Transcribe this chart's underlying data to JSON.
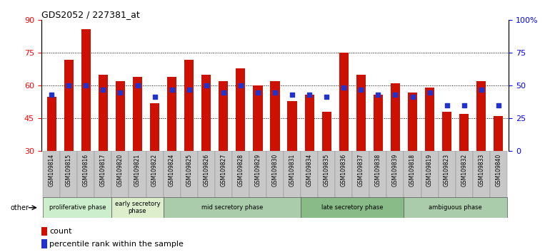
{
  "title": "GDS2052 / 227381_at",
  "samples": [
    "GSM109814",
    "GSM109815",
    "GSM109816",
    "GSM109817",
    "GSM109820",
    "GSM109821",
    "GSM109822",
    "GSM109824",
    "GSM109825",
    "GSM109826",
    "GSM109827",
    "GSM109828",
    "GSM109829",
    "GSM109830",
    "GSM109831",
    "GSM109834",
    "GSM109835",
    "GSM109836",
    "GSM109837",
    "GSM109838",
    "GSM109839",
    "GSM109818",
    "GSM109819",
    "GSM109823",
    "GSM109832",
    "GSM109833",
    "GSM109840"
  ],
  "count_values": [
    55,
    72,
    86,
    65,
    62,
    64,
    52,
    64,
    72,
    65,
    62,
    68,
    60,
    62,
    53,
    56,
    48,
    75,
    65,
    56,
    61,
    57,
    59,
    48,
    47,
    62,
    46
  ],
  "percentile_left_values": [
    56,
    60,
    60,
    58,
    57,
    60,
    55,
    58,
    58,
    60,
    57,
    60,
    57,
    57,
    56,
    56,
    55,
    59,
    58,
    56,
    56,
    55,
    57,
    51,
    51,
    58,
    51
  ],
  "ylim_left": [
    30,
    90
  ],
  "ylim_right": [
    0,
    100
  ],
  "yticks_left": [
    30,
    45,
    60,
    75,
    90
  ],
  "yticks_right": [
    0,
    25,
    50,
    75,
    100
  ],
  "bar_color": "#CC1100",
  "dot_color": "#2233CC",
  "phases": [
    {
      "label": "proliferative phase",
      "start": 0,
      "end": 4,
      "color": "#CCEECC"
    },
    {
      "label": "early secretory\nphase",
      "start": 4,
      "end": 7,
      "color": "#DDEECC"
    },
    {
      "label": "mid secretory phase",
      "start": 7,
      "end": 15,
      "color": "#AACCAA"
    },
    {
      "label": "late secretory phase",
      "start": 15,
      "end": 21,
      "color": "#88BB88"
    },
    {
      "label": "ambiguous phase",
      "start": 21,
      "end": 27,
      "color": "#AACCAA"
    }
  ],
  "legend_count_label": "count",
  "legend_percentile_label": "percentile rank within the sample",
  "other_label": "other"
}
